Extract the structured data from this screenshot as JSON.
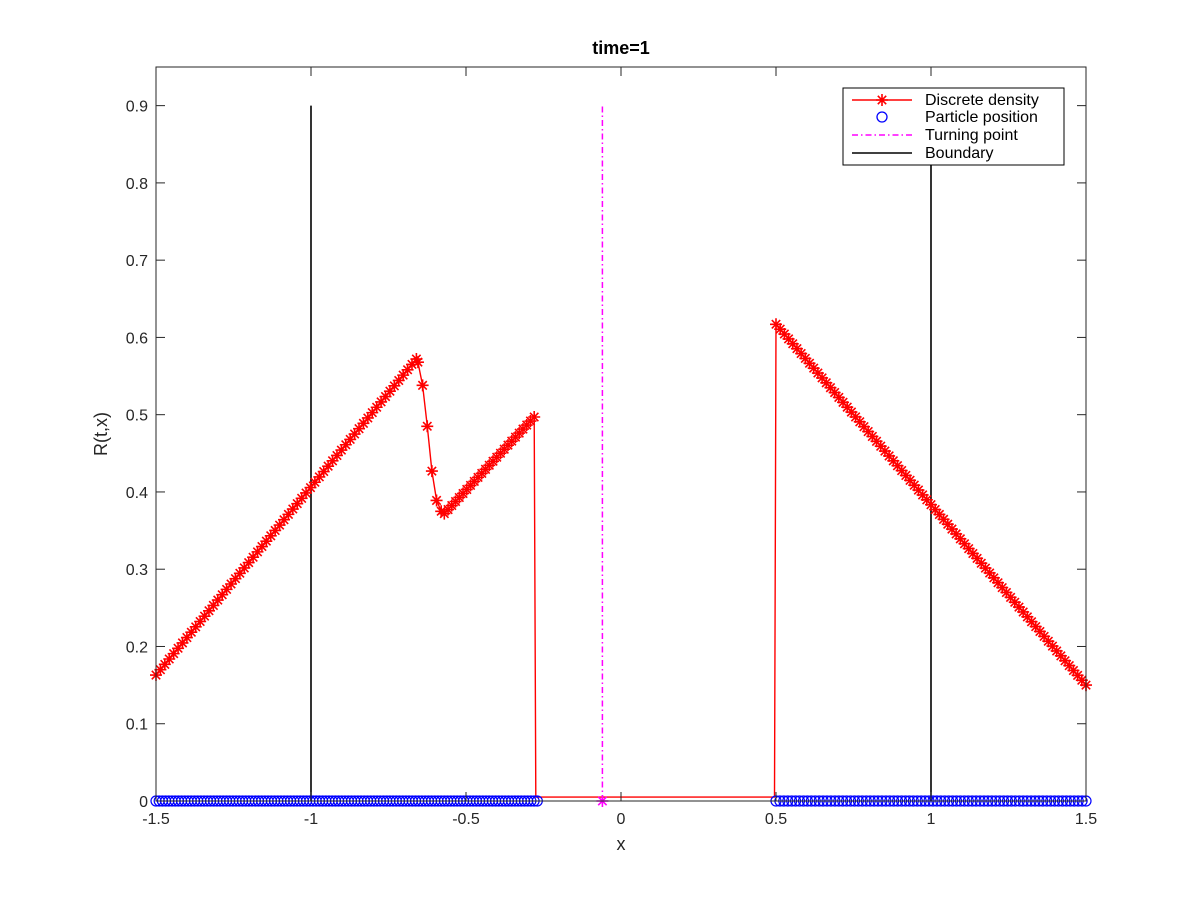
{
  "chart_data": {
    "type": "line",
    "title": "time=1",
    "xlabel": "x",
    "ylabel": "R(t,x)",
    "xlim": [
      -1.5,
      1.5
    ],
    "ylim": [
      0,
      0.95
    ],
    "xticks": [
      -1.5,
      -1,
      -0.5,
      0,
      0.5,
      1,
      1.5
    ],
    "xtick_labels": [
      "-1.5",
      "-1",
      "-0.5",
      "0",
      "0.5",
      "1",
      "1.5"
    ],
    "yticks": [
      0,
      0.1,
      0.2,
      0.3,
      0.4,
      0.5,
      0.6,
      0.7,
      0.8,
      0.9
    ],
    "ytick_labels": [
      "0",
      "0.1",
      "0.2",
      "0.3",
      "0.4",
      "0.5",
      "0.6",
      "0.7",
      "0.8",
      "0.9"
    ],
    "grid": false,
    "legend_position": "top-right",
    "colors": {
      "density": "#ff0000",
      "particles": "#0000ff",
      "turning": "#ff00ff",
      "boundary": "#000000"
    },
    "series": [
      {
        "name": "Discrete density",
        "style": "red-line-star",
        "segments": [
          {
            "x_start": -1.5,
            "y_start": 0.163,
            "x_end": -0.66,
            "y_end": 0.572,
            "n": 60
          },
          {
            "x": [
              -0.655,
              -0.64,
              -0.625,
              -0.61,
              -0.595,
              -0.58
            ],
            "y": [
              0.568,
              0.538,
              0.485,
              0.427,
              0.389,
              0.375
            ]
          },
          {
            "x_start": -0.57,
            "y_start": 0.372,
            "x_end": -0.28,
            "y_end": 0.497,
            "n": 25
          },
          {
            "x_start": 0.5,
            "y_start": 0.617,
            "x_end": 1.5,
            "y_end": 0.15,
            "n": 75
          }
        ],
        "connector": {
          "x": [
            -0.28,
            -0.275,
            0.495,
            0.5
          ],
          "y": [
            0.497,
            0.005,
            0.005,
            0.617
          ]
        },
        "tail": {
          "x": 1.5,
          "y": 0.142
        }
      },
      {
        "name": "Particle position",
        "style": "blue-circle",
        "y": 0,
        "groups": [
          {
            "x_start": -1.5,
            "x_end": -0.27,
            "n": 120
          },
          {
            "x_start": 0.5,
            "x_end": 1.5,
            "n": 80
          }
        ]
      },
      {
        "name": "Turning point",
        "style": "magenta-dashdot",
        "x": [
          -0.06,
          -0.06
        ],
        "y": [
          0,
          0.9
        ]
      },
      {
        "name": "Boundary",
        "style": "black-line",
        "lines": [
          {
            "x": [
              -1,
              -1
            ],
            "y": [
              0,
              0.9
            ]
          },
          {
            "x": [
              1,
              1
            ],
            "y": [
              0,
              0.9
            ]
          }
        ]
      }
    ]
  }
}
